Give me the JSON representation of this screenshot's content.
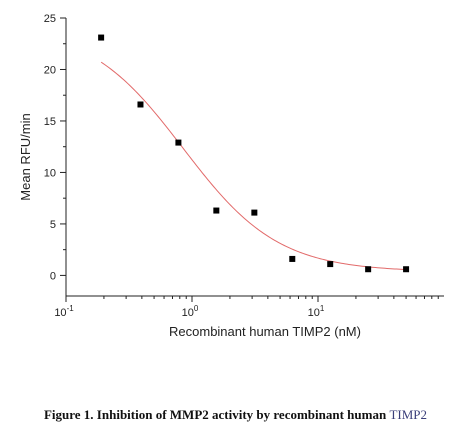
{
  "chart_data": {
    "type": "scatter",
    "xlabel": "Recombinant human TIMP2 (nM)",
    "ylabel": "Mean RFU/min",
    "x_scale": "log",
    "xlim": [
      0.1,
      100
    ],
    "ylim": [
      -2,
      25
    ],
    "y_ticks": [
      0,
      5,
      10,
      15,
      20,
      25
    ],
    "x_ticks": [
      {
        "value": 0.1,
        "label": "10",
        "exp": "-1"
      },
      {
        "value": 1,
        "label": "10",
        "exp": "0"
      },
      {
        "value": 10,
        "label": "10",
        "exp": "1"
      }
    ],
    "points": [
      {
        "x": 0.19,
        "y": 23.1
      },
      {
        "x": 0.39,
        "y": 16.6
      },
      {
        "x": 0.78,
        "y": 12.9
      },
      {
        "x": 1.56,
        "y": 6.3
      },
      {
        "x": 3.125,
        "y": 6.1
      },
      {
        "x": 6.25,
        "y": 1.6
      },
      {
        "x": 12.5,
        "y": 1.1
      },
      {
        "x": 25,
        "y": 0.6
      },
      {
        "x": 50,
        "y": 0.6
      }
    ],
    "fit": {
      "type": "exponential-decay",
      "color": "#e26a6a",
      "y0": 0.4,
      "A": 32.4,
      "t": 0.31
    },
    "marker_color": "#000000",
    "grid": false
  },
  "caption": {
    "prefix": "Figure 1. Inhibition of MMP2 activity by recombinant human ",
    "accent": "TIMP2"
  }
}
